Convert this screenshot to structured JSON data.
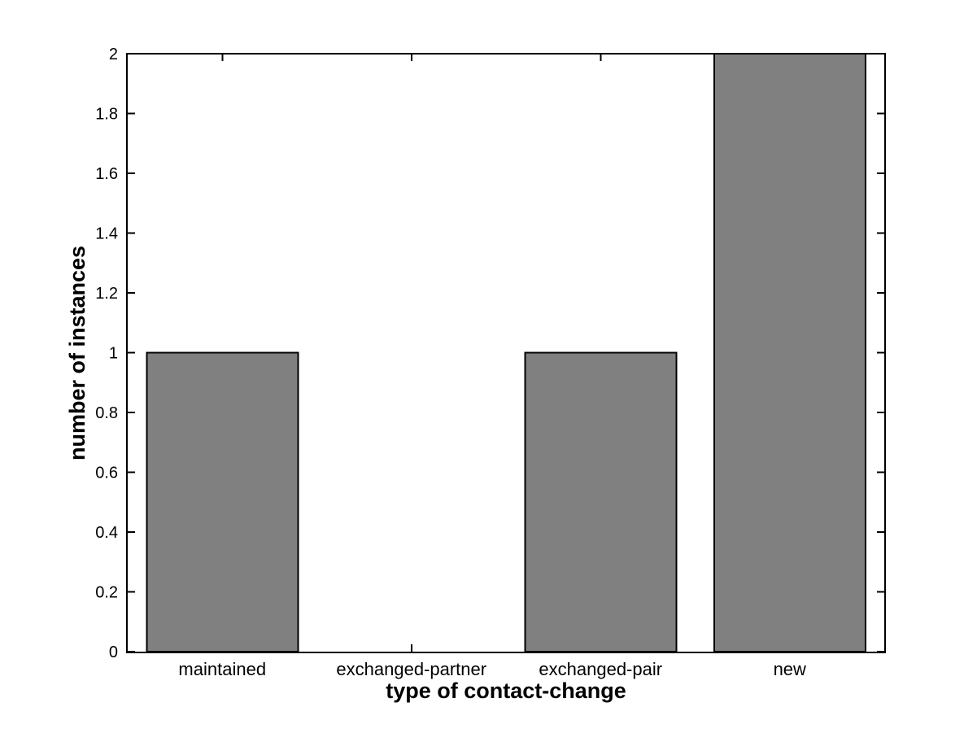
{
  "figure": {
    "background": "#ffffff"
  },
  "chart_data": {
    "type": "bar",
    "title": "",
    "xlabel": "type of contact-change",
    "ylabel": "number of instances",
    "categories": [
      "maintained",
      "exchanged-partner",
      "exchanged-pair",
      "new"
    ],
    "values": [
      1,
      0,
      1,
      2
    ],
    "ylim": [
      0,
      2
    ],
    "yticks": [
      0,
      0.2,
      0.4,
      0.6,
      0.8,
      1,
      1.2,
      1.4,
      1.6,
      1.8,
      2
    ],
    "ytick_labels": [
      "0",
      "0.2",
      "0.4",
      "0.6",
      "0.8",
      "1",
      "1.2",
      "1.4",
      "1.6",
      "1.8",
      "2"
    ],
    "bar_width_fraction": 0.8,
    "bar_color": "#808080",
    "bar_edge_color": "#000000",
    "axis_color": "#000000",
    "grid": false,
    "legend": null,
    "tick_direction": "in",
    "box": true
  }
}
